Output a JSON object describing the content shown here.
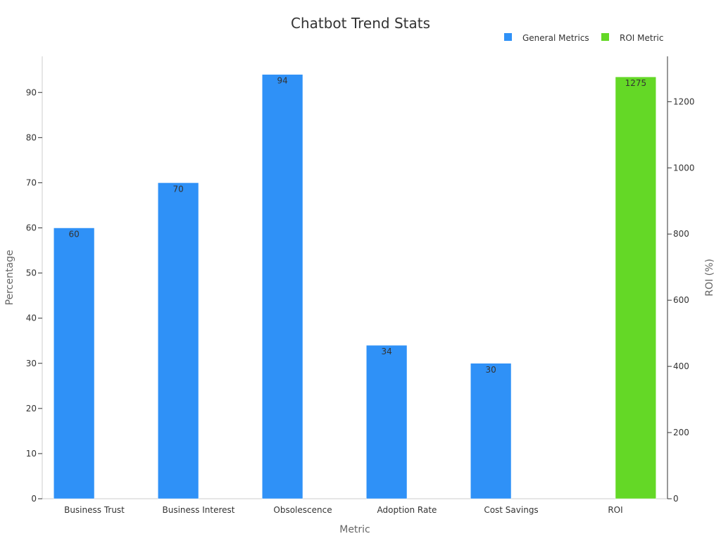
{
  "chart_data": {
    "type": "bar",
    "title": "Chatbot Trend Stats",
    "xlabel": "Metric",
    "ylabel": "Percentage",
    "y2label": "ROI (%)",
    "categories": [
      "Business Trust",
      "Business Interest",
      "Obsolescence",
      "Adoption Rate",
      "Cost Savings",
      "ROI"
    ],
    "series": [
      {
        "name": "General Metrics",
        "axis": "left",
        "color": "#2f91f7",
        "values": [
          60,
          70,
          94,
          34,
          30,
          null
        ]
      },
      {
        "name": "ROI Metric",
        "axis": "right",
        "color": "#64d826",
        "values": [
          null,
          null,
          null,
          null,
          null,
          1275
        ]
      }
    ],
    "ylim": [
      0,
      98
    ],
    "y2lim": [
      0,
      1337
    ],
    "yticks": [
      0,
      10,
      20,
      30,
      40,
      50,
      60,
      70,
      80,
      90
    ],
    "y2ticks": [
      0,
      200,
      400,
      600,
      800,
      1000,
      1200
    ],
    "legend_position": "top-right",
    "grid": false
  }
}
